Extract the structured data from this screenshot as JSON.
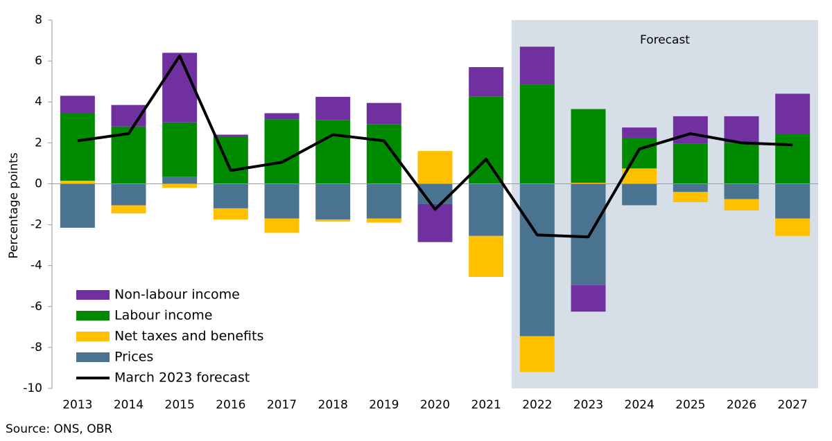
{
  "chart_data": {
    "type": "bar_line",
    "y_label": "Percentage points",
    "source": "Source: ONS, OBR",
    "annotation": "Forecast",
    "shade_start_category": "2022",
    "categories": [
      "2013",
      "2014",
      "2015",
      "2016",
      "2017",
      "2018",
      "2019",
      "2020",
      "2021",
      "2022",
      "2023",
      "2024",
      "2025",
      "2026",
      "2027"
    ],
    "series": [
      {
        "name": "Non-labour income",
        "color": "#7030a0",
        "values": [
          0.85,
          1.05,
          3.4,
          0.1,
          0.3,
          1.15,
          1.05,
          -1.85,
          1.45,
          1.85,
          -1.3,
          0.5,
          1.35,
          1.3,
          1.95
        ]
      },
      {
        "name": "Labour income",
        "color": "#008a00",
        "values": [
          3.3,
          2.8,
          2.65,
          2.3,
          3.15,
          3.1,
          2.9,
          0,
          4.25,
          4.85,
          3.6,
          1.5,
          1.95,
          2.0,
          2.45
        ]
      },
      {
        "name": "Net taxes and benefits",
        "color": "#ffc000",
        "values": [
          0.15,
          -0.4,
          -0.2,
          -0.55,
          -0.7,
          -0.1,
          -0.2,
          1.6,
          -2.0,
          -1.75,
          0.05,
          0.75,
          -0.5,
          -0.55,
          -0.85
        ]
      },
      {
        "name": "Prices",
        "color": "#4a7291",
        "values": [
          -2.15,
          -1.05,
          0.35,
          -1.2,
          -1.7,
          -1.75,
          -1.7,
          -1.0,
          -2.55,
          -7.45,
          -4.95,
          -1.05,
          -0.4,
          -0.75,
          -1.7
        ]
      },
      {
        "name": "March 2023 forecast",
        "color": "#000000",
        "line": true,
        "values": [
          2.1,
          2.45,
          6.25,
          0.65,
          1.05,
          2.4,
          2.1,
          -1.25,
          1.2,
          -2.5,
          -2.6,
          1.7,
          2.45,
          2.0,
          1.9
        ]
      }
    ],
    "ylim": [
      -10,
      8
    ],
    "yticks": [
      -10,
      -8,
      -6,
      -4,
      -2,
      0,
      2,
      4,
      6,
      8
    ]
  }
}
